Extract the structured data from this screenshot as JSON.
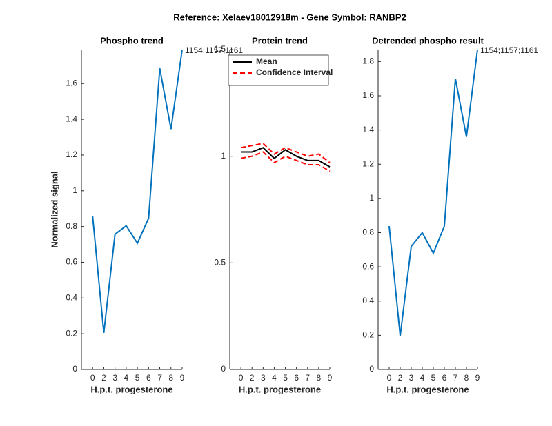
{
  "title": "Reference:  Xelaev18012918m - Gene Symbol:  RANBP2",
  "chart_data": [
    {
      "type": "line",
      "title": "Phospho trend",
      "xlabel": "H.p.t. progesterone",
      "ylabel": "Normalized signal",
      "categories": [
        "0",
        "2",
        "3",
        "4",
        "5",
        "6",
        "7",
        "8",
        "9"
      ],
      "series": [
        {
          "name": null,
          "color": "#0072bd",
          "linestyle": "solid",
          "values": [
            0.858,
            0.205,
            0.757,
            0.804,
            0.707,
            0.846,
            1.685,
            1.345,
            1.79
          ]
        }
      ],
      "annotation": "1154;1157;1161",
      "ylim": [
        0,
        1.79
      ],
      "yticks": [
        0,
        0.2,
        0.4,
        0.6,
        0.8,
        1,
        1.2,
        1.4,
        1.6
      ]
    },
    {
      "type": "line",
      "title": "Protein trend",
      "xlabel": "H.p.t. progesterone",
      "categories": [
        "0",
        "2",
        "3",
        "4",
        "5",
        "6",
        "7",
        "8",
        "9"
      ],
      "series": [
        {
          "name": "Mean",
          "color": "#000000",
          "linestyle": "solid",
          "values": [
            1.02,
            1.02,
            1.04,
            0.99,
            1.03,
            1.0,
            0.98,
            0.98,
            0.95
          ]
        },
        {
          "name": "Confidence Interval",
          "color": "#ff0000",
          "linestyle": "dashed",
          "values": [
            1.04,
            1.05,
            1.06,
            1.01,
            1.04,
            1.02,
            1.0,
            1.01,
            0.97
          ]
        },
        {
          "name": null,
          "color": "#ff0000",
          "linestyle": "dashed",
          "values": [
            0.99,
            1.0,
            1.02,
            0.97,
            1.0,
            0.98,
            0.96,
            0.96,
            0.93
          ]
        }
      ],
      "legend": "upper right",
      "ylim": [
        0,
        1.5
      ],
      "yticks": [
        0,
        0.5,
        1,
        1.5
      ]
    },
    {
      "type": "line",
      "title": "Detrended phospho result",
      "xlabel": "H.p.t. progesterone",
      "categories": [
        "0",
        "2",
        "3",
        "4",
        "5",
        "6",
        "7",
        "8",
        "9"
      ],
      "series": [
        {
          "name": null,
          "color": "#0072bd",
          "linestyle": "solid",
          "values": [
            0.838,
            0.197,
            0.72,
            0.8,
            0.68,
            0.838,
            1.7,
            1.36,
            1.87
          ]
        }
      ],
      "annotation": "1154;1157;1161",
      "ylim": [
        0,
        1.87
      ],
      "yticks": [
        0,
        0.2,
        0.4,
        0.6,
        0.8,
        1,
        1.2,
        1.4,
        1.6,
        1.8
      ]
    }
  ]
}
